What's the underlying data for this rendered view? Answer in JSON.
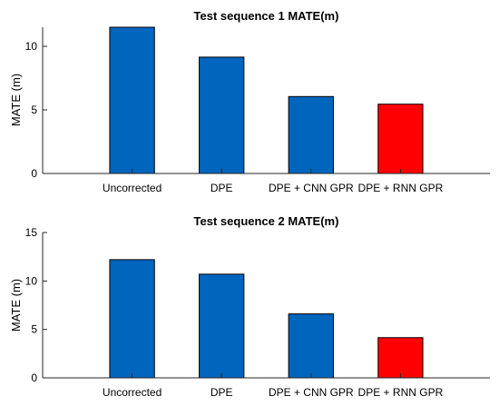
{
  "chart_data": [
    {
      "type": "bar",
      "title": "Test sequence 1 MATE(m)",
      "ylabel": "MATE (m)",
      "xlabel": "",
      "categories": [
        "Uncorrected",
        "DPE",
        "DPE + CNN GPR",
        "DPE + RNN GPR"
      ],
      "values": [
        11.5,
        9.15,
        6.05,
        5.45
      ],
      "bar_colors": [
        "#0065bd",
        "#0065bd",
        "#0065bd",
        "#ff0000"
      ],
      "ylim": [
        0,
        11.5
      ],
      "yticks": [
        0,
        5,
        10
      ],
      "grid": false
    },
    {
      "type": "bar",
      "title": "Test sequence 2 MATE(m)",
      "ylabel": "MATE (m)",
      "xlabel": "",
      "categories": [
        "Uncorrected",
        "DPE",
        "DPE + CNN GPR",
        "DPE + RNN GPR"
      ],
      "values": [
        12.2,
        10.7,
        6.6,
        4.15
      ],
      "bar_colors": [
        "#0065bd",
        "#0065bd",
        "#0065bd",
        "#ff0000"
      ],
      "ylim": [
        0,
        15
      ],
      "yticks": [
        0,
        5,
        10,
        15
      ],
      "grid": false
    }
  ]
}
